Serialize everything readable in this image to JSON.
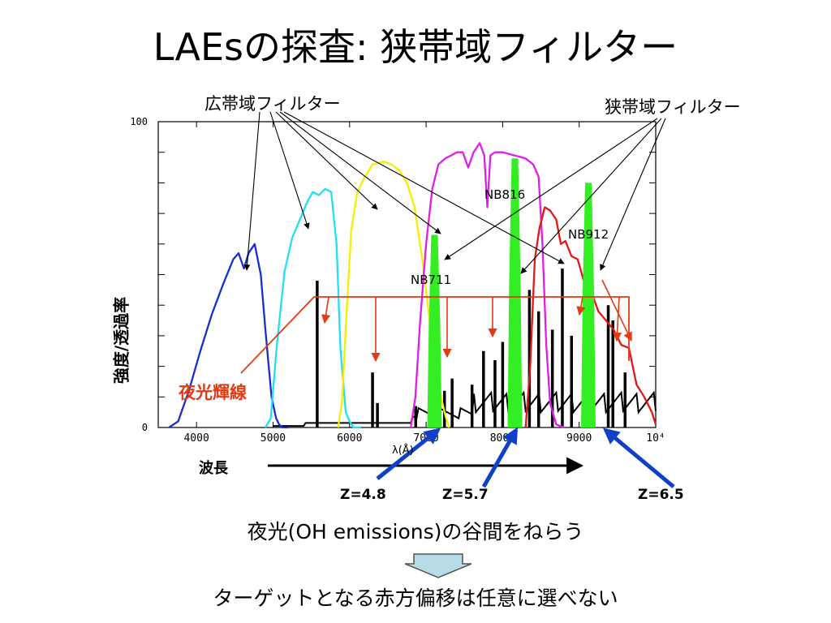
{
  "slide": {
    "title": "LAEsの探査: 狭帯域フィルター",
    "broadband_label": "広帯域フィルター",
    "narrowband_label": "狭帯域フィルター",
    "wavelength_label": "波長",
    "sky_lines_label": "夜光輝線",
    "note1": "夜光(OH emissions)の谷間をねらう",
    "note2": "ターゲットとなる赤方偏移は任意に選べない",
    "z_labels": [
      "Z=4.8",
      "Z=5.7",
      "Z=6.5"
    ],
    "colors": {
      "sky": "#e23a12",
      "arrow_blue": "#1040c8",
      "narrowband": "#33ee22"
    },
    "down_arrow_icon": "down-arrow-icon"
  },
  "chart_data": {
    "type": "line",
    "xlabel": "λ(Å)",
    "ylabel": "強度/透過率",
    "xlim": [
      3500,
      10000
    ],
    "ylim": [
      0,
      100
    ],
    "x_tick_labels": [
      "4000",
      "5000",
      "6000",
      "7000",
      "8000",
      "9000",
      "10⁴"
    ],
    "y_tick_labels": [
      "0",
      "100"
    ],
    "series": [
      {
        "name": "blue",
        "color": "#1a2fcc",
        "x": [
          3640,
          3760,
          3900,
          4050,
          4200,
          4350,
          4480,
          4550,
          4620,
          4680,
          4760,
          4840,
          4900,
          4980,
          5040,
          5080,
          5120,
          5200
        ],
        "y": [
          0,
          2,
          12,
          25,
          37,
          47,
          55,
          57,
          52,
          57,
          60,
          50,
          32,
          10,
          3,
          1,
          0,
          0
        ]
      },
      {
        "name": "cyan",
        "color": "#22e0f0",
        "x": [
          4900,
          4970,
          5050,
          5150,
          5250,
          5350,
          5450,
          5520,
          5600,
          5680,
          5760,
          5830,
          5880,
          5950,
          6000,
          6050,
          6150
        ],
        "y": [
          0,
          3,
          27,
          51,
          62,
          68,
          74,
          77,
          76,
          78,
          77,
          60,
          26,
          5,
          2,
          0,
          0
        ]
      },
      {
        "name": "yellow",
        "color": "#f5f000",
        "x": [
          5850,
          5900,
          5960,
          6020,
          6100,
          6200,
          6300,
          6450,
          6550,
          6650,
          6750,
          6850,
          6950,
          7050,
          7150,
          7250,
          7300
        ],
        "y": [
          0,
          8,
          37,
          64,
          77,
          82,
          86,
          87,
          86,
          84,
          80,
          72,
          55,
          34,
          15,
          4,
          0
        ]
      },
      {
        "name": "magenta",
        "color": "#e01ee6",
        "x": [
          6800,
          6860,
          6920,
          7000,
          7080,
          7160,
          7250,
          7330,
          7400,
          7480,
          7550,
          7620,
          7700,
          7760,
          7800,
          7840,
          7900,
          8000,
          8150,
          8300,
          8400,
          8470,
          8520,
          8570,
          8620,
          8700,
          8800
        ],
        "y": [
          0,
          10,
          34,
          60,
          78,
          86,
          88,
          89,
          90,
          90,
          85,
          90,
          93,
          89,
          72,
          89,
          90,
          90,
          89,
          88,
          86,
          82,
          60,
          27,
          8,
          1,
          0
        ]
      },
      {
        "name": "red",
        "color": "#e01818",
        "x": [
          8300,
          8360,
          8420,
          8480,
          8550,
          8620,
          8700,
          8760,
          8820,
          8900,
          8980,
          9060,
          9150,
          9250,
          9350,
          9450,
          9550,
          9650,
          9750,
          9850,
          9950,
          10000
        ],
        "y": [
          0,
          20,
          55,
          65,
          72,
          71,
          68,
          60,
          61,
          56,
          55,
          48,
          45,
          38,
          35,
          32,
          27,
          26,
          14,
          10,
          5,
          1
        ]
      }
    ],
    "narrowband_filters": [
      {
        "name": "NB711",
        "center": 7110,
        "peak": 63
      },
      {
        "name": "NB816",
        "center": 8160,
        "peak": 88
      },
      {
        "name": "NB912",
        "center": 9120,
        "peak": 80
      }
    ],
    "sky_emission_lines": [
      {
        "x": 5577,
        "y": 48
      },
      {
        "x": 6300,
        "y": 18
      },
      {
        "x": 6364,
        "y": 8
      },
      {
        "x": 6864,
        "y": 7
      },
      {
        "x": 7240,
        "y": 12
      },
      {
        "x": 7340,
        "y": 16
      },
      {
        "x": 7600,
        "y": 14
      },
      {
        "x": 7750,
        "y": 25
      },
      {
        "x": 7900,
        "y": 22
      },
      {
        "x": 8000,
        "y": 28
      },
      {
        "x": 8350,
        "y": 45
      },
      {
        "x": 8470,
        "y": 38
      },
      {
        "x": 8650,
        "y": 32
      },
      {
        "x": 8780,
        "y": 52
      },
      {
        "x": 8900,
        "y": 30
      },
      {
        "x": 9380,
        "y": 40
      },
      {
        "x": 9440,
        "y": 35
      },
      {
        "x": 9600,
        "y": 18
      }
    ]
  }
}
